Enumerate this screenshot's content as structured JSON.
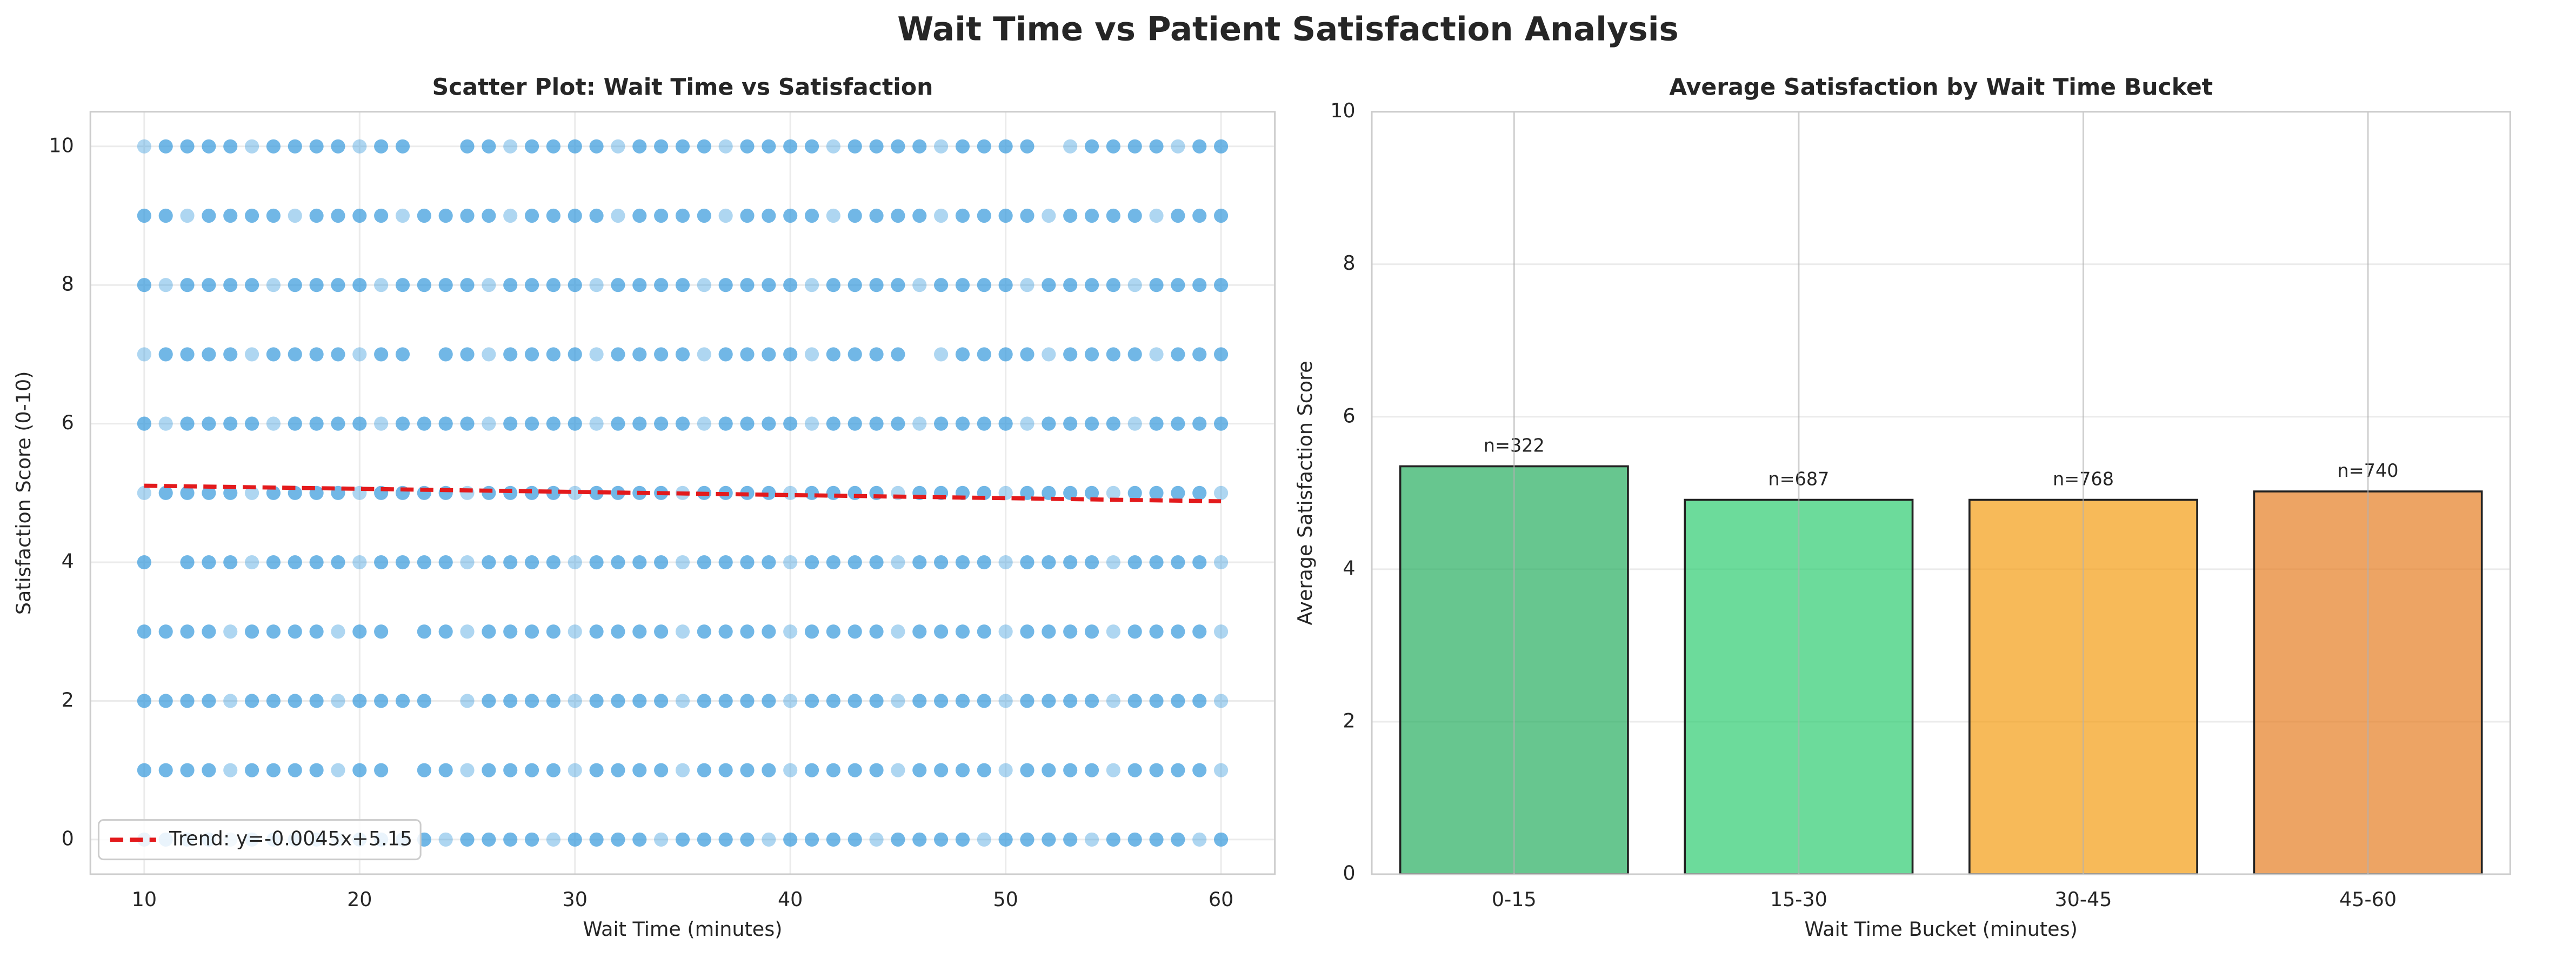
{
  "title": "Wait Time vs Patient Satisfaction Analysis",
  "chart_data": [
    {
      "type": "scatter",
      "title": "Scatter Plot: Wait Time vs Satisfaction",
      "xlabel": "Wait Time (minutes)",
      "ylabel": "Satisfaction Score (0-10)",
      "color": "#3498db",
      "xlim": [
        7.5,
        62.5
      ],
      "ylim": [
        -0.5,
        10.5
      ],
      "xticks": [
        10,
        20,
        30,
        40,
        50,
        60
      ],
      "yticks": [
        0,
        2,
        4,
        6,
        8,
        10
      ],
      "grid": true,
      "legend": "lower left",
      "trend": {
        "name": "Trend: y=-0.0045x+5.15",
        "color": "#e31a1c",
        "x": [
          10,
          60
        ],
        "values": [
          5.105,
          4.88
        ]
      },
      "x": [
        10,
        11,
        12,
        13,
        14,
        15,
        16,
        17,
        18,
        19,
        20,
        21,
        22,
        25,
        26,
        27,
        28,
        29,
        30,
        31,
        32,
        33,
        34,
        35,
        36,
        37,
        38,
        39,
        40,
        41,
        42,
        43,
        44,
        45,
        46,
        47,
        48,
        49,
        50,
        51,
        53,
        54,
        55,
        56,
        57,
        58,
        59,
        60,
        10,
        11,
        12,
        13,
        14,
        15,
        16,
        17,
        18,
        19,
        20,
        21,
        22,
        23,
        24,
        25,
        26,
        27,
        28,
        29,
        30,
        31,
        32,
        33,
        34,
        35,
        36,
        37,
        38,
        39,
        40,
        41,
        42,
        43,
        44,
        45,
        46,
        47,
        48,
        49,
        50,
        51,
        52,
        53,
        54,
        55,
        56,
        57,
        58,
        59,
        60,
        10,
        11,
        12,
        13,
        14,
        15,
        16,
        17,
        18,
        19,
        20,
        21,
        22,
        23,
        24,
        25,
        26,
        27,
        28,
        29,
        30,
        31,
        32,
        33,
        34,
        35,
        36,
        37,
        38,
        39,
        40,
        41,
        42,
        43,
        44,
        45,
        46,
        47,
        48,
        49,
        50,
        51,
        52,
        53,
        54,
        55,
        56,
        57,
        58,
        59,
        60,
        10,
        11,
        12,
        13,
        14,
        15,
        16,
        17,
        18,
        19,
        20,
        21,
        22,
        24,
        25,
        26,
        27,
        28,
        29,
        30,
        31,
        32,
        33,
        34,
        35,
        36,
        37,
        38,
        39,
        40,
        41,
        42,
        43,
        44,
        45,
        47,
        48,
        49,
        50,
        51,
        52,
        53,
        54,
        55,
        56,
        57,
        58,
        59,
        60,
        10,
        11,
        12,
        13,
        14,
        15,
        16,
        17,
        18,
        19,
        20,
        21,
        22,
        23,
        24,
        25,
        26,
        27,
        28,
        29,
        30,
        31,
        32,
        33,
        34,
        35,
        36,
        37,
        38,
        39,
        40,
        41,
        42,
        43,
        44,
        45,
        46,
        47,
        48,
        49,
        50,
        51,
        52,
        53,
        54,
        55,
        56,
        57,
        58,
        59,
        60,
        10,
        11,
        12,
        13,
        14,
        15,
        16,
        17,
        18,
        19,
        20,
        21,
        22,
        23,
        24,
        25,
        26,
        27,
        28,
        29,
        30,
        31,
        32,
        33,
        34,
        35,
        36,
        37,
        38,
        39,
        40,
        41,
        42,
        43,
        44,
        45,
        46,
        47,
        48,
        49,
        50,
        51,
        52,
        53,
        54,
        55,
        56,
        57,
        58,
        59,
        60,
        10,
        12,
        13,
        14,
        15,
        16,
        17,
        18,
        19,
        20,
        21,
        22,
        23,
        24,
        25,
        26,
        27,
        28,
        29,
        30,
        31,
        32,
        33,
        34,
        35,
        36,
        37,
        38,
        39,
        40,
        41,
        42,
        43,
        44,
        45,
        46,
        47,
        48,
        49,
        50,
        51,
        52,
        53,
        54,
        55,
        56,
        57,
        58,
        59,
        60,
        10,
        11,
        12,
        13,
        14,
        15,
        16,
        17,
        18,
        19,
        20,
        21,
        23,
        24,
        25,
        26,
        27,
        28,
        29,
        30,
        31,
        32,
        33,
        34,
        35,
        36,
        37,
        38,
        39,
        40,
        41,
        42,
        43,
        44,
        45,
        46,
        47,
        48,
        49,
        50,
        51,
        52,
        53,
        54,
        55,
        56,
        57,
        58,
        59,
        60,
        10,
        11,
        12,
        13,
        14,
        15,
        16,
        17,
        18,
        19,
        20,
        21,
        22,
        23,
        25,
        26,
        27,
        28,
        29,
        30,
        31,
        32,
        33,
        34,
        35,
        36,
        37,
        38,
        39,
        40,
        41,
        42,
        43,
        44,
        45,
        46,
        47,
        48,
        49,
        50,
        51,
        52,
        53,
        54,
        55,
        56,
        57,
        58,
        59,
        60,
        10,
        11,
        12,
        13,
        14,
        15,
        16,
        17,
        18,
        19,
        20,
        21,
        23,
        24,
        25,
        26,
        27,
        28,
        29,
        30,
        31,
        32,
        33,
        34,
        35,
        36,
        37,
        38,
        39,
        40,
        41,
        42,
        43,
        44,
        45,
        46,
        47,
        48,
        49,
        50,
        51,
        52,
        53,
        54,
        55,
        56,
        57,
        58,
        59,
        60,
        10,
        11,
        12,
        13,
        14,
        15,
        16,
        17,
        18,
        19,
        20,
        21,
        22,
        23,
        24,
        25,
        26,
        27,
        28,
        29,
        30,
        31,
        32,
        33,
        34,
        35,
        36,
        37,
        38,
        39,
        40,
        41,
        42,
        43,
        44,
        45,
        46,
        47,
        48,
        49,
        50,
        51,
        52,
        53,
        54,
        55,
        56,
        57,
        58,
        59,
        60
      ],
      "y": [
        10,
        10,
        10,
        10,
        10,
        10,
        10,
        10,
        10,
        10,
        10,
        10,
        10,
        10,
        10,
        10,
        10,
        10,
        10,
        10,
        10,
        10,
        10,
        10,
        10,
        10,
        10,
        10,
        10,
        10,
        10,
        10,
        10,
        10,
        10,
        10,
        10,
        10,
        10,
        10,
        10,
        10,
        10,
        10,
        10,
        10,
        10,
        10,
        9,
        9,
        9,
        9,
        9,
        9,
        9,
        9,
        9,
        9,
        9,
        9,
        9,
        9,
        9,
        9,
        9,
        9,
        9,
        9,
        9,
        9,
        9,
        9,
        9,
        9,
        9,
        9,
        9,
        9,
        9,
        9,
        9,
        9,
        9,
        9,
        9,
        9,
        9,
        9,
        9,
        9,
        9,
        9,
        9,
        9,
        9,
        9,
        9,
        9,
        9,
        8,
        8,
        8,
        8,
        8,
        8,
        8,
        8,
        8,
        8,
        8,
        8,
        8,
        8,
        8,
        8,
        8,
        8,
        8,
        8,
        8,
        8,
        8,
        8,
        8,
        8,
        8,
        8,
        8,
        8,
        8,
        8,
        8,
        8,
        8,
        8,
        8,
        8,
        8,
        8,
        8,
        8,
        8,
        8,
        8,
        8,
        8,
        8,
        8,
        8,
        8,
        7,
        7,
        7,
        7,
        7,
        7,
        7,
        7,
        7,
        7,
        7,
        7,
        7,
        7,
        7,
        7,
        7,
        7,
        7,
        7,
        7,
        7,
        7,
        7,
        7,
        7,
        7,
        7,
        7,
        7,
        7,
        7,
        7,
        7,
        7,
        7,
        7,
        7,
        7,
        7,
        7,
        7,
        7,
        7,
        7,
        7,
        7,
        7,
        7,
        6,
        6,
        6,
        6,
        6,
        6,
        6,
        6,
        6,
        6,
        6,
        6,
        6,
        6,
        6,
        6,
        6,
        6,
        6,
        6,
        6,
        6,
        6,
        6,
        6,
        6,
        6,
        6,
        6,
        6,
        6,
        6,
        6,
        6,
        6,
        6,
        6,
        6,
        6,
        6,
        6,
        6,
        6,
        6,
        6,
        6,
        6,
        6,
        6,
        6,
        6,
        5,
        5,
        5,
        5,
        5,
        5,
        5,
        5,
        5,
        5,
        5,
        5,
        5,
        5,
        5,
        5,
        5,
        5,
        5,
        5,
        5,
        5,
        5,
        5,
        5,
        5,
        5,
        5,
        5,
        5,
        5,
        5,
        5,
        5,
        5,
        5,
        5,
        5,
        5,
        5,
        5,
        5,
        5,
        5,
        5,
        5,
        5,
        5,
        5,
        5,
        5,
        4,
        4,
        4,
        4,
        4,
        4,
        4,
        4,
        4,
        4,
        4,
        4,
        4,
        4,
        4,
        4,
        4,
        4,
        4,
        4,
        4,
        4,
        4,
        4,
        4,
        4,
        4,
        4,
        4,
        4,
        4,
        4,
        4,
        4,
        4,
        4,
        4,
        4,
        4,
        4,
        4,
        4,
        4,
        4,
        4,
        4,
        4,
        4,
        4,
        4,
        3,
        3,
        3,
        3,
        3,
        3,
        3,
        3,
        3,
        3,
        3,
        3,
        3,
        3,
        3,
        3,
        3,
        3,
        3,
        3,
        3,
        3,
        3,
        3,
        3,
        3,
        3,
        3,
        3,
        3,
        3,
        3,
        3,
        3,
        3,
        3,
        3,
        3,
        3,
        3,
        3,
        3,
        3,
        3,
        3,
        3,
        3,
        3,
        3,
        3,
        2,
        2,
        2,
        2,
        2,
        2,
        2,
        2,
        2,
        2,
        2,
        2,
        2,
        2,
        2,
        2,
        2,
        2,
        2,
        2,
        2,
        2,
        2,
        2,
        2,
        2,
        2,
        2,
        2,
        2,
        2,
        2,
        2,
        2,
        2,
        2,
        2,
        2,
        2,
        2,
        2,
        2,
        2,
        2,
        2,
        2,
        2,
        2,
        2,
        2,
        1,
        1,
        1,
        1,
        1,
        1,
        1,
        1,
        1,
        1,
        1,
        1,
        1,
        1,
        1,
        1,
        1,
        1,
        1,
        1,
        1,
        1,
        1,
        1,
        1,
        1,
        1,
        1,
        1,
        1,
        1,
        1,
        1,
        1,
        1,
        1,
        1,
        1,
        1,
        1,
        1,
        1,
        1,
        1,
        1,
        1,
        1,
        1,
        1,
        1,
        0,
        0,
        0,
        0,
        0,
        0,
        0,
        0,
        0,
        0,
        0,
        0,
        0,
        0,
        0,
        0,
        0,
        0,
        0,
        0,
        0,
        0,
        0,
        0,
        0,
        0,
        0,
        0,
        0,
        0,
        0,
        0,
        0,
        0,
        0,
        0,
        0,
        0,
        0,
        0,
        0,
        0,
        0,
        0,
        0,
        0,
        0,
        0,
        0,
        0,
        0
      ]
    },
    {
      "type": "bar",
      "title": "Average Satisfaction by Wait Time Bucket",
      "xlabel": "Wait Time Bucket (minutes)",
      "ylabel": "Average Satisfaction Score",
      "categories": [
        "0-15",
        "15-30",
        "30-45",
        "45-60"
      ],
      "values": [
        5.35,
        4.91,
        4.91,
        5.02
      ],
      "colors": [
        "#27ae60",
        "#2ecc71",
        "#f39c12",
        "#e67e22"
      ],
      "annotations": [
        "n=322",
        "n=687",
        "n=768",
        "n=740"
      ],
      "ylim": [
        0,
        10
      ],
      "yticks": [
        0,
        2,
        4,
        6,
        8,
        10
      ],
      "grid": true
    }
  ]
}
